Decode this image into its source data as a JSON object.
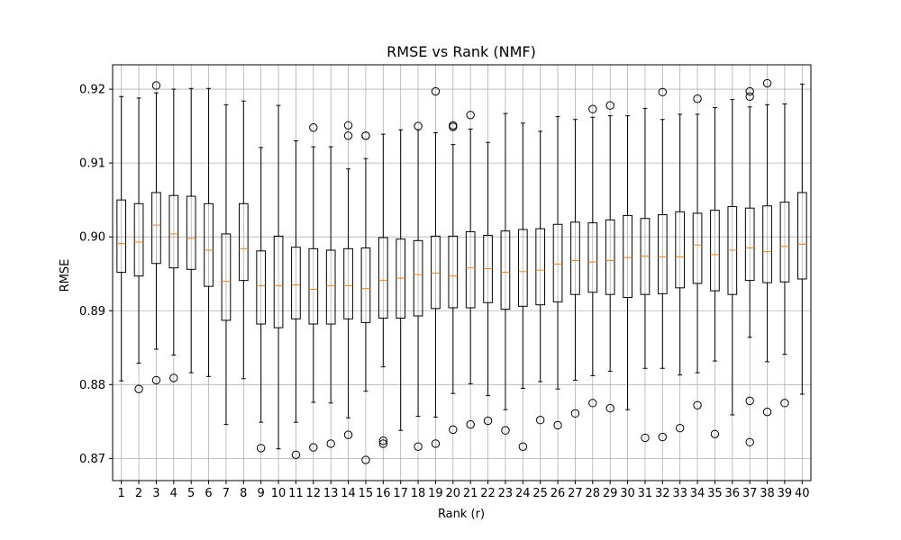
{
  "chart_data": {
    "type": "box",
    "title": "RMSE vs Rank (NMF)",
    "xlabel": "Rank (r)",
    "ylabel": "RMSE",
    "ylim": [
      0.867,
      0.9233
    ],
    "y_ticks": [
      0.87,
      0.88,
      0.89,
      0.9,
      0.91,
      0.92
    ],
    "grid": true,
    "legend": "none",
    "colors": {
      "box": "#000000",
      "median": "#ff7f0e",
      "grid": "#b0b0b0"
    },
    "boxes": [
      {
        "x": 1,
        "whislo": 0.8805,
        "q1": 0.8952,
        "med": 0.8991,
        "q3": 0.905,
        "whishi": 0.919,
        "fliers": []
      },
      {
        "x": 2,
        "whislo": 0.8829,
        "q1": 0.8947,
        "med": 0.8993,
        "q3": 0.9045,
        "whishi": 0.9188,
        "fliers": [
          0.8794
        ]
      },
      {
        "x": 3,
        "whislo": 0.8848,
        "q1": 0.8964,
        "med": 0.9016,
        "q3": 0.906,
        "whishi": 0.9195,
        "fliers": [
          0.9205,
          0.8806
        ]
      },
      {
        "x": 4,
        "whislo": 0.884,
        "q1": 0.8958,
        "med": 0.9004,
        "q3": 0.9056,
        "whishi": 0.92,
        "fliers": [
          0.8809
        ]
      },
      {
        "x": 5,
        "whislo": 0.8816,
        "q1": 0.8956,
        "med": 0.8998,
        "q3": 0.9055,
        "whishi": 0.9201,
        "fliers": []
      },
      {
        "x": 6,
        "whislo": 0.8811,
        "q1": 0.8933,
        "med": 0.8982,
        "q3": 0.9045,
        "whishi": 0.9201,
        "fliers": []
      },
      {
        "x": 7,
        "whislo": 0.8746,
        "q1": 0.8887,
        "med": 0.894,
        "q3": 0.9004,
        "whishi": 0.9179,
        "fliers": []
      },
      {
        "x": 8,
        "whislo": 0.8808,
        "q1": 0.8941,
        "med": 0.8984,
        "q3": 0.9045,
        "whishi": 0.9184,
        "fliers": []
      },
      {
        "x": 9,
        "whislo": 0.8749,
        "q1": 0.8882,
        "med": 0.8934,
        "q3": 0.8981,
        "whishi": 0.9121,
        "fliers": [
          0.8714
        ]
      },
      {
        "x": 10,
        "whislo": 0.8713,
        "q1": 0.8877,
        "med": 0.8934,
        "q3": 0.9001,
        "whishi": 0.9178,
        "fliers": []
      },
      {
        "x": 11,
        "whislo": 0.8749,
        "q1": 0.8889,
        "med": 0.8935,
        "q3": 0.8986,
        "whishi": 0.913,
        "fliers": [
          0.8705
        ]
      },
      {
        "x": 12,
        "whislo": 0.8776,
        "q1": 0.8882,
        "med": 0.8929,
        "q3": 0.8984,
        "whishi": 0.9122,
        "fliers": [
          0.9148,
          0.8715
        ]
      },
      {
        "x": 13,
        "whislo": 0.8775,
        "q1": 0.8882,
        "med": 0.8934,
        "q3": 0.8982,
        "whishi": 0.9122,
        "fliers": [
          0.872
        ]
      },
      {
        "x": 14,
        "whislo": 0.8755,
        "q1": 0.8889,
        "med": 0.8934,
        "q3": 0.8984,
        "whishi": 0.9092,
        "fliers": [
          0.9151,
          0.9137,
          0.8732
        ]
      },
      {
        "x": 15,
        "whislo": 0.8791,
        "q1": 0.8884,
        "med": 0.893,
        "q3": 0.8985,
        "whishi": 0.9106,
        "fliers": [
          0.9137,
          0.9137,
          0.8698
        ]
      },
      {
        "x": 16,
        "whislo": 0.8824,
        "q1": 0.889,
        "med": 0.8941,
        "q3": 0.8999,
        "whishi": 0.9139,
        "fliers": [
          0.8724,
          0.872
        ]
      },
      {
        "x": 17,
        "whislo": 0.8738,
        "q1": 0.889,
        "med": 0.8944,
        "q3": 0.8997,
        "whishi": 0.9145,
        "fliers": []
      },
      {
        "x": 18,
        "whislo": 0.8757,
        "q1": 0.8893,
        "med": 0.8949,
        "q3": 0.8995,
        "whishi": 0.9145,
        "fliers": [
          0.915,
          0.8716
        ]
      },
      {
        "x": 19,
        "whislo": 0.8756,
        "q1": 0.8903,
        "med": 0.8951,
        "q3": 0.9001,
        "whishi": 0.9141,
        "fliers": [
          0.9197,
          0.872
        ]
      },
      {
        "x": 20,
        "whislo": 0.8788,
        "q1": 0.8904,
        "med": 0.8947,
        "q3": 0.9001,
        "whishi": 0.9125,
        "fliers": [
          0.9151,
          0.9149,
          0.8739
        ]
      },
      {
        "x": 21,
        "whislo": 0.8801,
        "q1": 0.8904,
        "med": 0.8958,
        "q3": 0.9007,
        "whishi": 0.9146,
        "fliers": [
          0.9165,
          0.8746
        ]
      },
      {
        "x": 22,
        "whislo": 0.8785,
        "q1": 0.8911,
        "med": 0.8957,
        "q3": 0.9002,
        "whishi": 0.9128,
        "fliers": [
          0.8751
        ]
      },
      {
        "x": 23,
        "whislo": 0.8766,
        "q1": 0.8902,
        "med": 0.8952,
        "q3": 0.9008,
        "whishi": 0.9167,
        "fliers": [
          0.8738
        ]
      },
      {
        "x": 24,
        "whislo": 0.8795,
        "q1": 0.8906,
        "med": 0.8953,
        "q3": 0.901,
        "whishi": 0.9154,
        "fliers": [
          0.8716
        ]
      },
      {
        "x": 25,
        "whislo": 0.8804,
        "q1": 0.8908,
        "med": 0.8955,
        "q3": 0.9011,
        "whishi": 0.9143,
        "fliers": [
          0.8752
        ]
      },
      {
        "x": 26,
        "whislo": 0.8794,
        "q1": 0.8912,
        "med": 0.8963,
        "q3": 0.9017,
        "whishi": 0.9163,
        "fliers": [
          0.8745
        ]
      },
      {
        "x": 27,
        "whislo": 0.8806,
        "q1": 0.8922,
        "med": 0.8968,
        "q3": 0.902,
        "whishi": 0.9159,
        "fliers": [
          0.8761
        ]
      },
      {
        "x": 28,
        "whislo": 0.8812,
        "q1": 0.8925,
        "med": 0.8966,
        "q3": 0.9019,
        "whishi": 0.9162,
        "fliers": [
          0.9173,
          0.8775
        ]
      },
      {
        "x": 29,
        "whislo": 0.8818,
        "q1": 0.8922,
        "med": 0.8968,
        "q3": 0.9023,
        "whishi": 0.9164,
        "fliers": [
          0.9178,
          0.8768
        ]
      },
      {
        "x": 30,
        "whislo": 0.8766,
        "q1": 0.8918,
        "med": 0.8972,
        "q3": 0.9029,
        "whishi": 0.9164,
        "fliers": []
      },
      {
        "x": 31,
        "whislo": 0.8822,
        "q1": 0.8922,
        "med": 0.8974,
        "q3": 0.9025,
        "whishi": 0.9174,
        "fliers": [
          0.8728
        ]
      },
      {
        "x": 32,
        "whislo": 0.8822,
        "q1": 0.8923,
        "med": 0.8973,
        "q3": 0.903,
        "whishi": 0.9159,
        "fliers": [
          0.9196,
          0.8729
        ]
      },
      {
        "x": 33,
        "whislo": 0.8813,
        "q1": 0.8931,
        "med": 0.8973,
        "q3": 0.9034,
        "whishi": 0.9166,
        "fliers": [
          0.8741
        ]
      },
      {
        "x": 34,
        "whislo": 0.8816,
        "q1": 0.8937,
        "med": 0.8989,
        "q3": 0.9032,
        "whishi": 0.9166,
        "fliers": [
          0.9187,
          0.8772
        ]
      },
      {
        "x": 35,
        "whislo": 0.8832,
        "q1": 0.8927,
        "med": 0.8976,
        "q3": 0.9036,
        "whishi": 0.9175,
        "fliers": [
          0.8733
        ]
      },
      {
        "x": 36,
        "whislo": 0.8759,
        "q1": 0.8922,
        "med": 0.8982,
        "q3": 0.9041,
        "whishi": 0.9186,
        "fliers": []
      },
      {
        "x": 37,
        "whislo": 0.8864,
        "q1": 0.8941,
        "med": 0.8985,
        "q3": 0.9039,
        "whishi": 0.9176,
        "fliers": [
          0.9197,
          0.919,
          0.8778,
          0.8722
        ]
      },
      {
        "x": 38,
        "whislo": 0.8831,
        "q1": 0.8938,
        "med": 0.898,
        "q3": 0.9042,
        "whishi": 0.9179,
        "fliers": [
          0.9208,
          0.8763
        ]
      },
      {
        "x": 39,
        "whislo": 0.8841,
        "q1": 0.8939,
        "med": 0.8987,
        "q3": 0.9047,
        "whishi": 0.918,
        "fliers": [
          0.8775
        ]
      },
      {
        "x": 40,
        "whislo": 0.8787,
        "q1": 0.8943,
        "med": 0.899,
        "q3": 0.906,
        "whishi": 0.9207,
        "fliers": []
      }
    ]
  }
}
